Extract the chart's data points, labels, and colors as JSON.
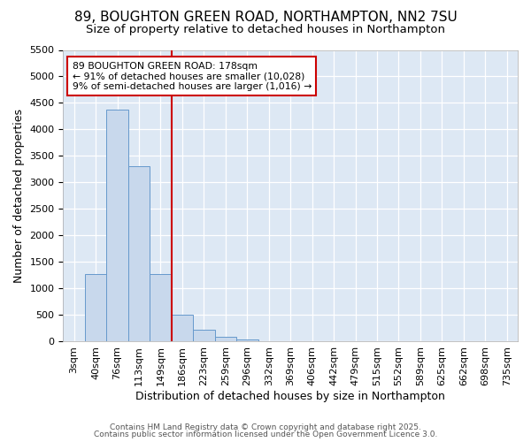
{
  "title1": "89, BOUGHTON GREEN ROAD, NORTHAMPTON, NN2 7SU",
  "title2": "Size of property relative to detached houses in Northampton",
  "xlabel": "Distribution of detached houses by size in Northampton",
  "ylabel": "Number of detached properties",
  "footer1": "Contains HM Land Registry data © Crown copyright and database right 2025.",
  "footer2": "Contains public sector information licensed under the Open Government Licence 3.0.",
  "bar_labels": [
    "3sqm",
    "40sqm",
    "76sqm",
    "113sqm",
    "149sqm",
    "186sqm",
    "223sqm",
    "259sqm",
    "296sqm",
    "332sqm",
    "369sqm",
    "406sqm",
    "442sqm",
    "479sqm",
    "515sqm",
    "552sqm",
    "589sqm",
    "625sqm",
    "662sqm",
    "698sqm",
    "735sqm"
  ],
  "bar_values": [
    0,
    1270,
    4380,
    3310,
    1280,
    500,
    230,
    85,
    45,
    0,
    0,
    0,
    0,
    0,
    0,
    0,
    0,
    0,
    0,
    0,
    0
  ],
  "bar_color": "#c8d8ec",
  "bar_edgecolor": "#6699cc",
  "vline_label_idx": 5,
  "vline_color": "#cc0000",
  "annotation_text": "89 BOUGHTON GREEN ROAD: 178sqm\n← 91% of detached houses are smaller (10,028)\n9% of semi-detached houses are larger (1,016) →",
  "annotation_box_color": "#cc0000",
  "ylim": [
    0,
    5500
  ],
  "bg_color": "#dde8f4",
  "grid_color": "#ffffff",
  "title_fontsize": 11,
  "subtitle_fontsize": 9.5,
  "tick_fontsize": 8,
  "ylabel_fontsize": 9,
  "xlabel_fontsize": 9
}
